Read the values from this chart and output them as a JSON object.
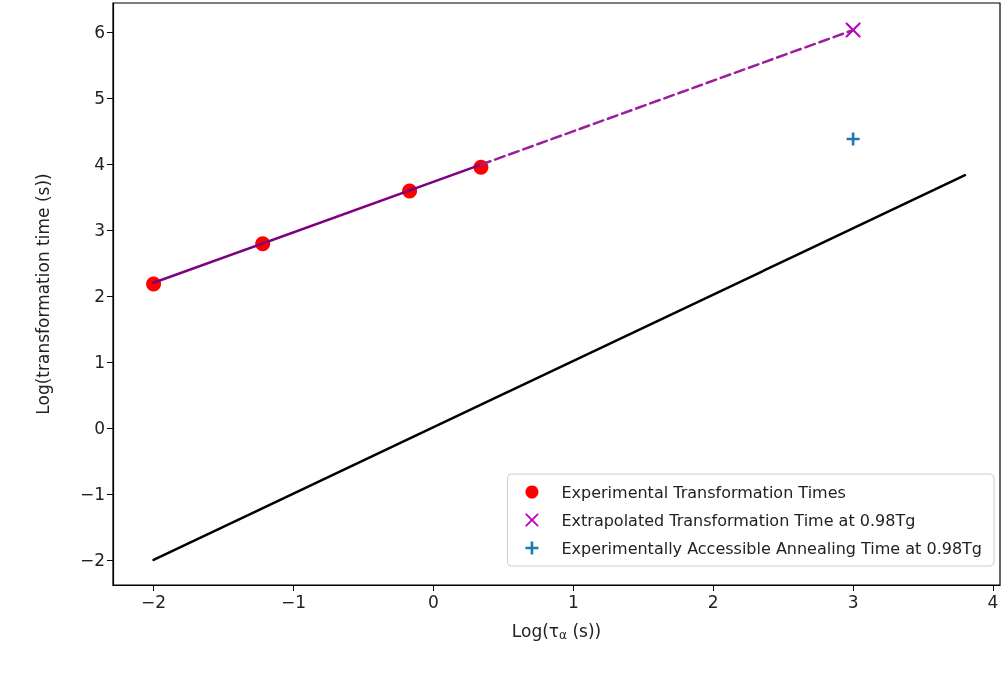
{
  "chart_data": {
    "type": "scatter",
    "xlabel": "Log(τ$_{α}$ (s))",
    "ylabel": "Log(transformation time (s))",
    "xlim": [
      -2.29,
      4.05
    ],
    "ylim": [
      -2.38,
      6.44
    ],
    "xticks": [
      -2,
      -1,
      0,
      1,
      2,
      3,
      4
    ],
    "yticks": [
      -2,
      -1,
      0,
      1,
      2,
      3,
      4,
      5,
      6
    ],
    "grid": false,
    "legend": "bottom right",
    "series": [
      {
        "type": "line",
        "color": "#7f007f",
        "x": [
          -2,
          0.34
        ],
        "values": [
          2.2,
          3.99
        ],
        "marker": "none",
        "line_style": "solid"
      },
      {
        "type": "line",
        "color": "#9b1f9b",
        "x": [
          0.34,
          3
        ],
        "values": [
          3.99,
          6.03
        ],
        "marker": "none",
        "line_style": "dashed"
      },
      {
        "type": "line",
        "color": "#000000",
        "x": [
          -2,
          3.8
        ],
        "values": [
          -2,
          3.83
        ],
        "marker": "none",
        "line_style": "solid"
      },
      {
        "name": "Experimental Transformation Times",
        "color": "#ff0000",
        "x": [
          -2,
          -1.22,
          -0.17,
          0.34
        ],
        "values": [
          2.18,
          2.79,
          3.59,
          3.95
        ],
        "marker": "circle"
      },
      {
        "name": "Extrapolated Transformation Time at 0.98Tg",
        "color": "#bf00bf",
        "x": [
          3
        ],
        "values": [
          6.03
        ],
        "marker": "cross"
      },
      {
        "name": "Experimentally Accessible Annealing Time at 0.98Tg",
        "color": "#1f77b4",
        "x": [
          3
        ],
        "values": [
          4.38
        ],
        "marker": "plus"
      }
    ]
  }
}
